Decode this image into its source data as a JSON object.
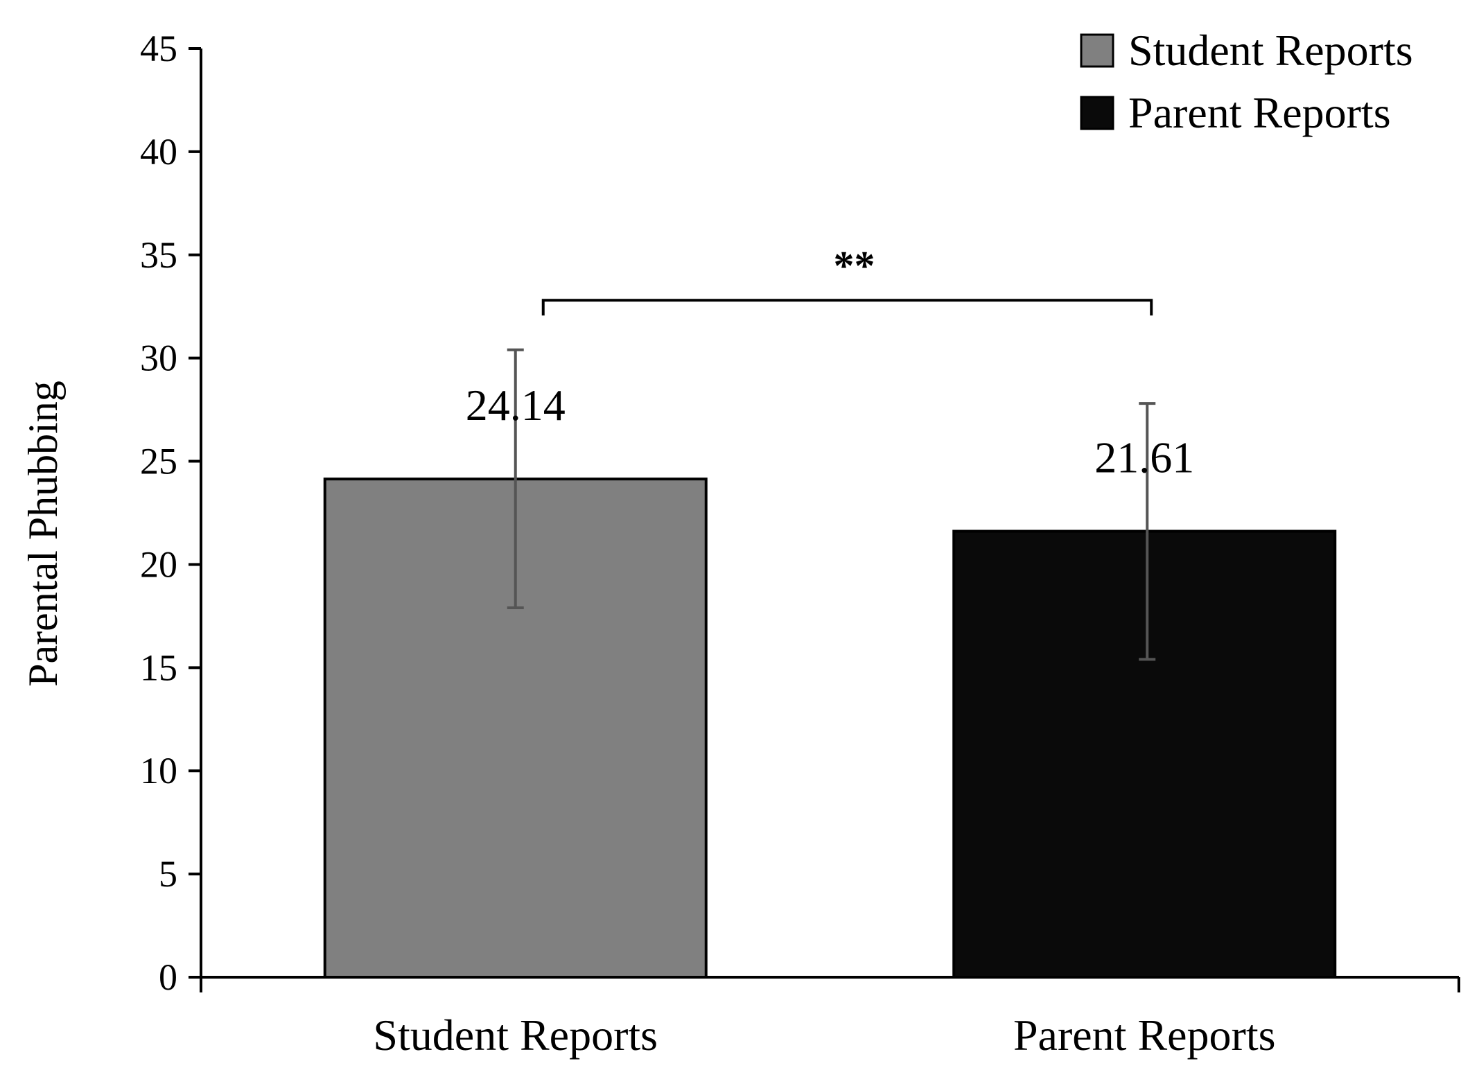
{
  "chart_data": {
    "type": "bar",
    "categories": [
      "Student Reports",
      "Parent Reports"
    ],
    "values": [
      24.14,
      21.61
    ],
    "value_labels": [
      "24.14",
      "21.61"
    ],
    "error_bars": [
      {
        "low": 17.9,
        "high": 30.4
      },
      {
        "low": 15.4,
        "high": 27.8
      }
    ],
    "bar_colors": [
      "#808080",
      "#0a0a0a"
    ],
    "xlabel": "",
    "ylabel": "Parental Phubbing",
    "ylim": [
      0,
      45
    ],
    "yticks": [
      0,
      5,
      10,
      15,
      20,
      25,
      30,
      35,
      40,
      45
    ],
    "legend": {
      "position": "top-right",
      "entries": [
        {
          "label": "Student Reports",
          "color": "#808080"
        },
        {
          "label": "Parent Reports",
          "color": "#0a0a0a"
        }
      ]
    },
    "annotations": [
      {
        "type": "significance-bracket",
        "text": "**",
        "between": [
          "Student Reports",
          "Parent Reports"
        ],
        "level": 32.8
      }
    ],
    "grid": false
  }
}
